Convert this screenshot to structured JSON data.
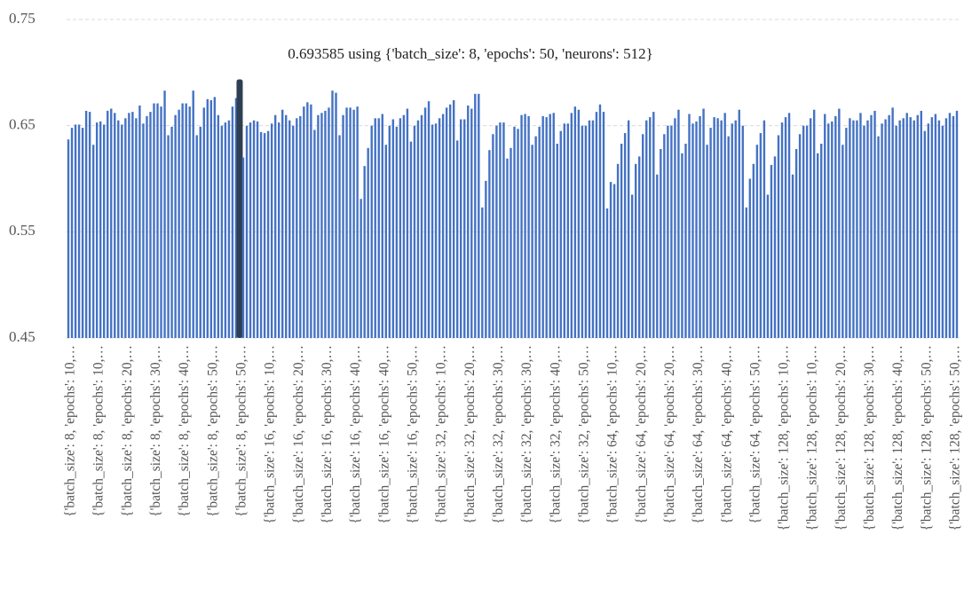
{
  "chart_data": {
    "type": "bar",
    "annotation": "0.693585 using {'batch_size': 8, 'epochs': 50, 'neurons': 512}",
    "color": "#4472c4",
    "highlight": {
      "index": 48,
      "color": "#2f3e50"
    },
    "ylim": [
      0.45,
      0.75
    ],
    "yticks": [
      0.45,
      0.55,
      0.65,
      0.75
    ],
    "grid": true,
    "categories": [
      "{'batch_size': 8, 'epochs': 10,…",
      null,
      null,
      null,
      null,
      null,
      null,
      null,
      "{'batch_size': 8, 'epochs': 10,…",
      null,
      null,
      null,
      null,
      null,
      null,
      null,
      "{'batch_size': 8, 'epochs': 20,…",
      null,
      null,
      null,
      null,
      null,
      null,
      null,
      "{'batch_size': 8, 'epochs': 30,…",
      null,
      null,
      null,
      null,
      null,
      null,
      null,
      "{'batch_size': 8, 'epochs': 40,…",
      null,
      null,
      null,
      null,
      null,
      null,
      null,
      "{'batch_size': 8, 'epochs': 50,…",
      null,
      null,
      null,
      null,
      null,
      null,
      null,
      "{'batch_size': 8, 'epochs': 50,…",
      null,
      null,
      null,
      null,
      null,
      null,
      null,
      "{'batch_size': 16, 'epochs': 10,…",
      null,
      null,
      null,
      null,
      null,
      null,
      null,
      "{'batch_size': 16, 'epochs': 20,…",
      null,
      null,
      null,
      null,
      null,
      null,
      null,
      "{'batch_size': 16, 'epochs': 30,…",
      null,
      null,
      null,
      null,
      null,
      null,
      null,
      "{'batch_size': 16, 'epochs': 40,…",
      null,
      null,
      null,
      null,
      null,
      null,
      null,
      "{'batch_size': 16, 'epochs': 40,…",
      null,
      null,
      null,
      null,
      null,
      null,
      null,
      "{'batch_size': 16, 'epochs': 50,…",
      null,
      null,
      null,
      null,
      null,
      null,
      null,
      "{'batch_size': 32, 'epochs': 10,…",
      null,
      null,
      null,
      null,
      null,
      null,
      null,
      "{'batch_size': 32, 'epochs': 20,…",
      null,
      null,
      null,
      null,
      null,
      null,
      null,
      "{'batch_size': 32, 'epochs': 30,…",
      null,
      null,
      null,
      null,
      null,
      null,
      null,
      "{'batch_size': 32, 'epochs': 30,…",
      null,
      null,
      null,
      null,
      null,
      null,
      null,
      "{'batch_size': 32, 'epochs': 40,…",
      null,
      null,
      null,
      null,
      null,
      null,
      null,
      "{'batch_size': 32, 'epochs': 50,…",
      null,
      null,
      null,
      null,
      null,
      null,
      null,
      "{'batch_size': 64, 'epochs': 10,…",
      null,
      null,
      null,
      null,
      null,
      null,
      null,
      "{'batch_size': 64, 'epochs': 20,…",
      null,
      null,
      null,
      null,
      null,
      null,
      null,
      "{'batch_size': 64, 'epochs': 20,…",
      null,
      null,
      null,
      null,
      null,
      null,
      null,
      "{'batch_size': 64, 'epochs': 30,…",
      null,
      null,
      null,
      null,
      null,
      null,
      null,
      "{'batch_size': 64, 'epochs': 40,…",
      null,
      null,
      null,
      null,
      null,
      null,
      null,
      "{'batch_size': 64, 'epochs': 50,…",
      null,
      null,
      null,
      null,
      null,
      null,
      null,
      "{'batch_size': 128, 'epochs': 10,…",
      null,
      null,
      null,
      null,
      null,
      null,
      null,
      "{'batch_size': 128, 'epochs': 10,…",
      null,
      null,
      null,
      null,
      null,
      null,
      null,
      "{'batch_size': 128, 'epochs': 20,…",
      null,
      null,
      null,
      null,
      null,
      null,
      null,
      "{'batch_size': 128, 'epochs': 30,…",
      null,
      null,
      null,
      null,
      null,
      null,
      null,
      "{'batch_size': 128, 'epochs': 40,…",
      null,
      null,
      null,
      null,
      null,
      null,
      null,
      "{'batch_size': 128, 'epochs': 50,…",
      null,
      null,
      null,
      null,
      null,
      null,
      null,
      "{'batch_size': 128, 'epochs': 50,…",
      null
    ],
    "values": [
      0.637,
      0.648,
      0.651,
      0.651,
      0.648,
      0.664,
      0.663,
      0.632,
      0.653,
      0.654,
      0.651,
      0.664,
      0.666,
      0.662,
      0.655,
      0.651,
      0.657,
      0.662,
      0.663,
      0.657,
      0.669,
      0.652,
      0.659,
      0.663,
      0.671,
      0.671,
      0.668,
      0.683,
      0.641,
      0.649,
      0.66,
      0.665,
      0.671,
      0.671,
      0.668,
      0.683,
      0.641,
      0.649,
      0.667,
      0.675,
      0.674,
      0.677,
      0.66,
      0.65,
      0.653,
      0.655,
      0.668,
      0.676,
      0.693585,
      0.62,
      0.65,
      0.653,
      0.655,
      0.654,
      0.644,
      0.643,
      0.645,
      0.652,
      0.66,
      0.653,
      0.665,
      0.66,
      0.655,
      0.65,
      0.657,
      0.659,
      0.668,
      0.672,
      0.67,
      0.646,
      0.66,
      0.662,
      0.664,
      0.667,
      0.683,
      0.681,
      0.641,
      0.66,
      0.667,
      0.667,
      0.665,
      0.668,
      0.581,
      0.612,
      0.629,
      0.65,
      0.657,
      0.657,
      0.661,
      0.632,
      0.65,
      0.656,
      0.649,
      0.657,
      0.66,
      0.666,
      0.635,
      0.65,
      0.655,
      0.66,
      0.667,
      0.673,
      0.651,
      0.652,
      0.657,
      0.661,
      0.667,
      0.67,
      0.674,
      0.636,
      0.656,
      0.656,
      0.669,
      0.666,
      0.68,
      0.68,
      0.573,
      0.598,
      0.627,
      0.642,
      0.65,
      0.653,
      0.653,
      0.619,
      0.629,
      0.649,
      0.647,
      0.66,
      0.661,
      0.659,
      0.632,
      0.64,
      0.649,
      0.659,
      0.658,
      0.661,
      0.662,
      0.633,
      0.645,
      0.652,
      0.652,
      0.662,
      0.668,
      0.665,
      0.65,
      0.65,
      0.655,
      0.655,
      0.663,
      0.67,
      0.663,
      0.572,
      0.597,
      0.595,
      0.614,
      0.633,
      0.643,
      0.655,
      0.585,
      0.614,
      0.621,
      0.642,
      0.655,
      0.658,
      0.663,
      0.604,
      0.628,
      0.642,
      0.65,
      0.65,
      0.657,
      0.665,
      0.624,
      0.633,
      0.661,
      0.652,
      0.654,
      0.659,
      0.666,
      0.632,
      0.648,
      0.658,
      0.657,
      0.655,
      0.662,
      0.64,
      0.652,
      0.655,
      0.665,
      0.65,
      0.573,
      0.6,
      0.614,
      0.632,
      0.643,
      0.655,
      0.585,
      0.613,
      0.621,
      0.641,
      0.653,
      0.658,
      0.662,
      0.604,
      0.628,
      0.642,
      0.65,
      0.65,
      0.657,
      0.665,
      0.624,
      0.633,
      0.661,
      0.652,
      0.654,
      0.659,
      0.666,
      0.632,
      0.648,
      0.657,
      0.655,
      0.655,
      0.662,
      0.65,
      0.655,
      0.66,
      0.664,
      0.64,
      0.652,
      0.656,
      0.66,
      0.667,
      0.65,
      0.655,
      0.657,
      0.662,
      0.658,
      0.655,
      0.66,
      0.664,
      0.645,
      0.652,
      0.658,
      0.661,
      0.655,
      0.65,
      0.657,
      0.662,
      0.659,
      0.664
    ]
  }
}
